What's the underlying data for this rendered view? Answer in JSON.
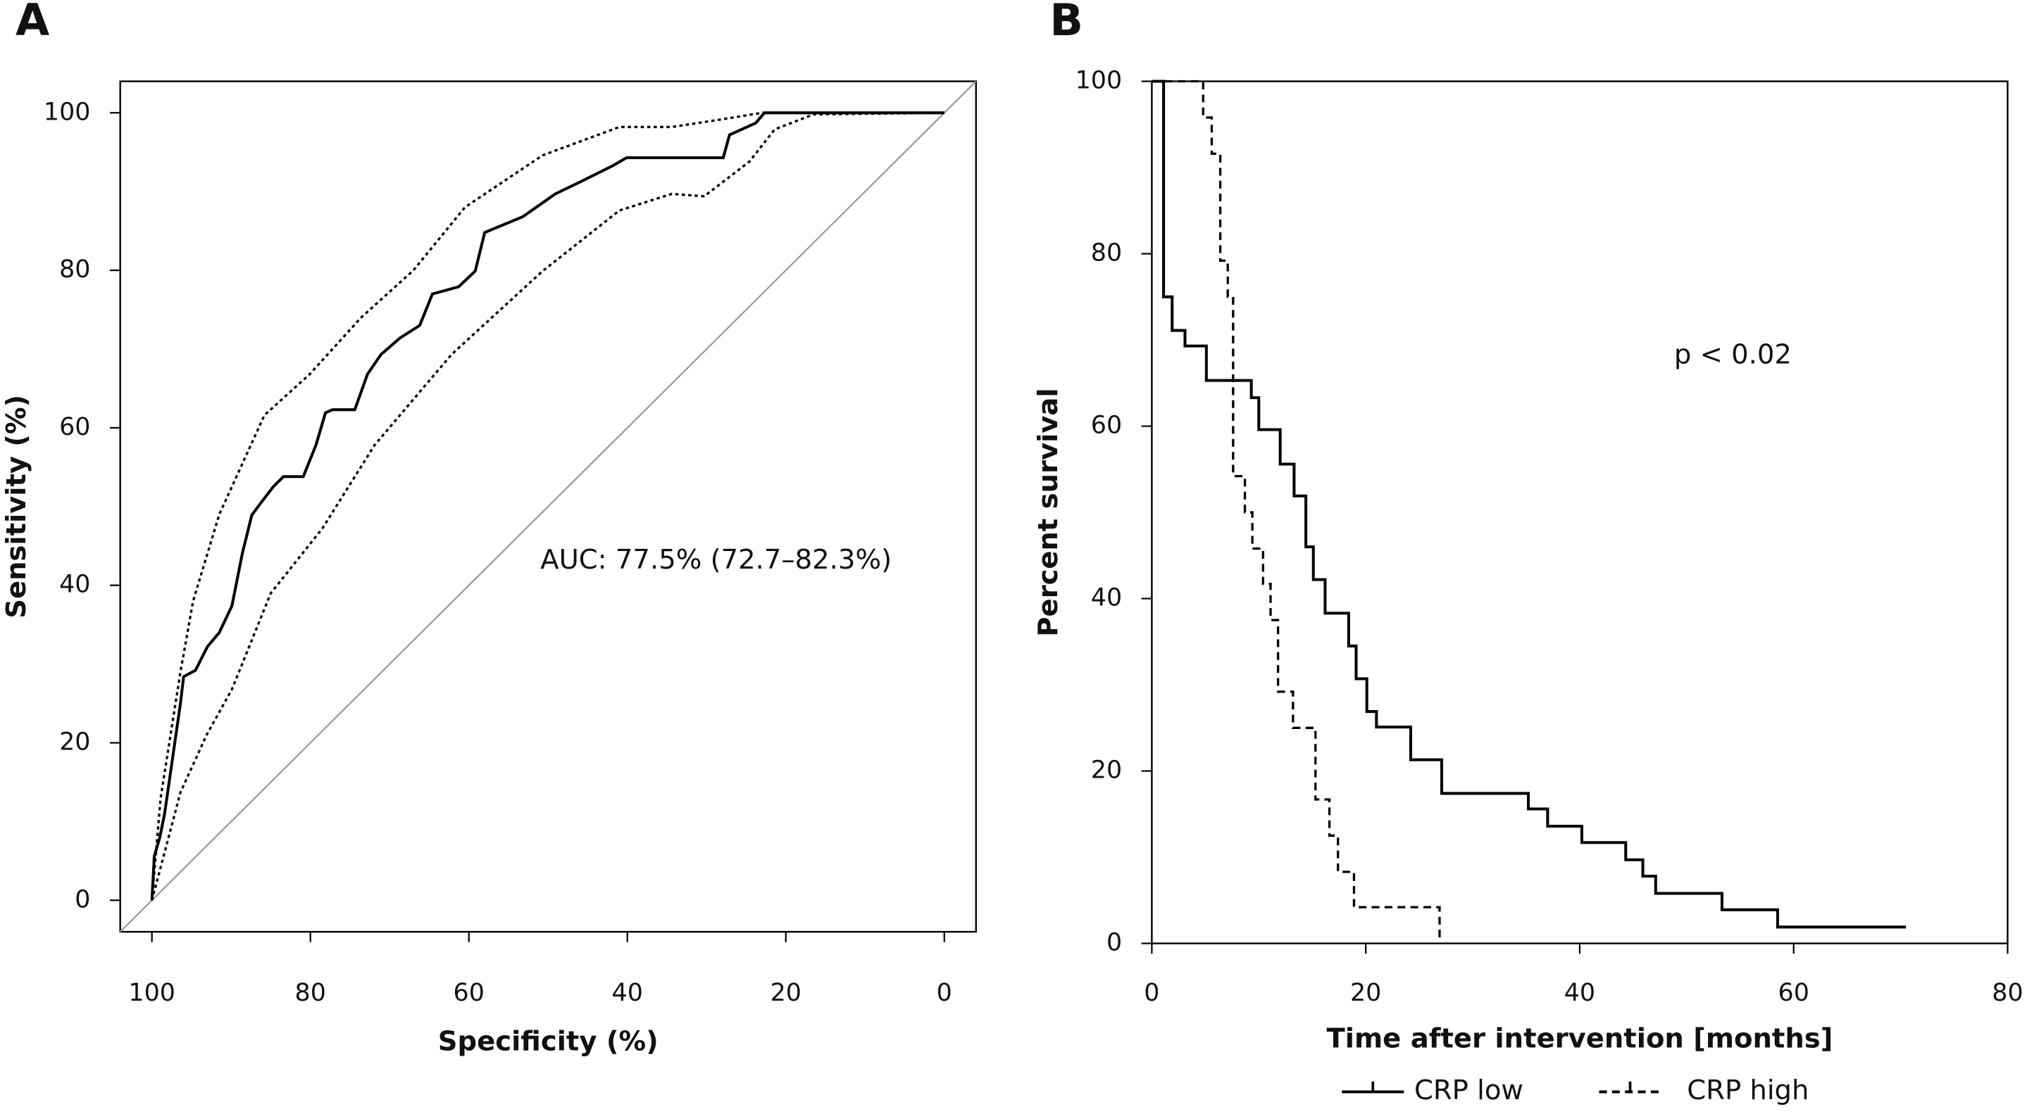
{
  "chart_data": [
    {
      "type": "line",
      "label": "A",
      "x_label": "Specificity (%)",
      "y_label": "Sensitivity (%)",
      "annotation": "AUC: 77.5% (72.7–82.3%)",
      "xlim": [
        104,
        -4
      ],
      "ylim": [
        -4,
        104
      ],
      "xticks": [
        100,
        80,
        60,
        40,
        20,
        0
      ],
      "yticks": [
        0,
        20,
        40,
        60,
        80,
        100
      ],
      "diagonal": true,
      "diagonal_color": "#999999",
      "series": [
        {
          "color": "#000000",
          "linestyle": "solid",
          "x": [
            100,
            99.7,
            99,
            98.4,
            97.9,
            97.2,
            96.4,
            96,
            94.5,
            93,
            91.5,
            89.9,
            88.6,
            87.4,
            86.6,
            84.7,
            83.4,
            80.9,
            79.3,
            78.1,
            77.2,
            74.4,
            72.8,
            71.1,
            68.7,
            66.2,
            64.6,
            61.3,
            59.2,
            58,
            53.2,
            49.1,
            45.8,
            41.8,
            40.1,
            27.9,
            27.1,
            23.8,
            22.7,
            0
          ],
          "values": [
            0,
            5.6,
            8,
            11,
            14.5,
            19.4,
            25,
            28.4,
            29.2,
            32.2,
            34,
            37.4,
            44,
            48.9,
            50,
            52.5,
            53.8,
            53.8,
            57.8,
            61.9,
            62.3,
            62.3,
            66.8,
            69.3,
            71.4,
            73,
            77,
            77.9,
            79.9,
            84.8,
            86.8,
            89.7,
            91.3,
            93.3,
            94.3,
            94.3,
            97.2,
            98.7,
            100,
            100
          ]
        },
        {
          "color": "#000000",
          "linestyle": "dotted",
          "x": [
            100,
            98.9,
            96.4,
            94.8,
            91.5,
            85.8,
            80.1,
            73.6,
            67,
            60.5,
            50.7,
            41,
            34.4,
            27.9,
            23,
            0
          ],
          "values": [
            0,
            13,
            29,
            38,
            49,
            61.6,
            66.8,
            74,
            80,
            88,
            94.6,
            98.2,
            98.2,
            99.2,
            100,
            100
          ]
        },
        {
          "color": "#000000",
          "linestyle": "dotted",
          "x": [
            100,
            96.4,
            93.1,
            89.9,
            85,
            78.5,
            71.9,
            62.2,
            50.7,
            41,
            34.4,
            30.3,
            24.6,
            21.4,
            16.5,
            0
          ],
          "values": [
            0,
            13.7,
            21,
            26.8,
            39,
            47.2,
            57.8,
            69.3,
            79.9,
            87.6,
            89.7,
            89.4,
            93.8,
            97.9,
            99.8,
            100
          ]
        }
      ]
    },
    {
      "type": "step",
      "label": "B",
      "x_label": "Time after intervention [months]",
      "y_label": "Percent survival",
      "annotation": "p < 0.02",
      "xlim": [
        0,
        80
      ],
      "ylim": [
        0,
        100
      ],
      "xticks": [
        0,
        20,
        40,
        60,
        80
      ],
      "yticks": [
        0,
        20,
        40,
        60,
        80,
        100
      ],
      "legend": "bottom",
      "series": [
        {
          "name": "CRP low",
          "color": "#000000",
          "linestyle": "solid",
          "x": [
            0,
            1.1,
            1.9,
            3.1,
            5.1,
            9.3,
            10,
            12,
            13.3,
            14.4,
            15.1,
            16.2,
            18.4,
            19.1,
            20.1,
            21,
            24.2,
            27.1,
            35.2,
            37,
            40.2,
            44.3,
            45.9,
            47.1,
            53.3,
            58.5,
            70.5
          ],
          "values": [
            100,
            75,
            71.1,
            69.3,
            65.3,
            63.3,
            59.6,
            55.6,
            51.9,
            46,
            42.2,
            38.3,
            34.5,
            30.7,
            26.9,
            25.1,
            21.3,
            17.4,
            15.6,
            13.6,
            11.7,
            9.7,
            7.8,
            5.8,
            3.9,
            1.9,
            1.9
          ]
        },
        {
          "name": "CRP high",
          "color": "#000000",
          "linestyle": "dashed",
          "x": [
            0,
            4.8,
            5.6,
            6.4,
            7.1,
            7.6,
            8.7,
            9.4,
            10.4,
            11.1,
            11.8,
            13.2,
            15.3,
            16.6,
            17.4,
            18.9,
            26.9,
            26.9
          ],
          "values": [
            100,
            95.8,
            91.6,
            79.2,
            75,
            54.2,
            50,
            45.8,
            41.7,
            37.5,
            29.2,
            25,
            16.7,
            12.5,
            8.3,
            4.2,
            4.2,
            0
          ]
        }
      ]
    }
  ]
}
